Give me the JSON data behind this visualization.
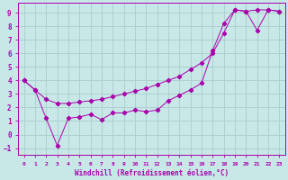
{
  "xlabel": "Windchill (Refroidissement éolien,°C)",
  "bg_color": "#c8e8e8",
  "grid_color": "#aacccc",
  "line_color": "#aa00aa",
  "xlim": [
    -0.5,
    23.5
  ],
  "ylim": [
    -1.5,
    9.7
  ],
  "xticks": [
    0,
    1,
    2,
    3,
    4,
    5,
    6,
    7,
    8,
    9,
    10,
    11,
    12,
    13,
    14,
    15,
    16,
    17,
    18,
    19,
    20,
    21,
    22,
    23
  ],
  "yticks": [
    -1,
    0,
    1,
    2,
    3,
    4,
    5,
    6,
    7,
    8,
    9
  ],
  "line1_x": [
    0,
    1,
    2,
    3,
    4,
    5,
    6,
    7,
    8,
    9,
    10,
    11,
    12,
    13,
    14,
    15,
    16,
    17,
    18,
    19,
    20,
    21,
    22,
    23
  ],
  "line1_y": [
    4.0,
    3.3,
    2.6,
    2.3,
    2.3,
    2.4,
    2.5,
    2.6,
    2.8,
    3.0,
    3.2,
    3.4,
    3.7,
    4.0,
    4.3,
    4.8,
    5.3,
    6.0,
    7.5,
    9.2,
    9.1,
    9.2,
    9.2,
    9.1
  ],
  "line2_x": [
    0,
    1,
    2,
    3,
    4,
    5,
    6,
    7,
    8,
    9,
    10,
    11,
    12,
    13,
    14,
    15,
    16,
    17,
    18,
    19,
    20,
    21,
    22,
    23
  ],
  "line2_y": [
    4.0,
    3.3,
    1.2,
    -0.8,
    1.2,
    1.3,
    1.5,
    1.1,
    1.6,
    1.6,
    1.8,
    1.7,
    1.8,
    2.5,
    2.9,
    3.3,
    3.8,
    6.2,
    8.2,
    9.2,
    9.1,
    7.7,
    9.2,
    9.1
  ]
}
